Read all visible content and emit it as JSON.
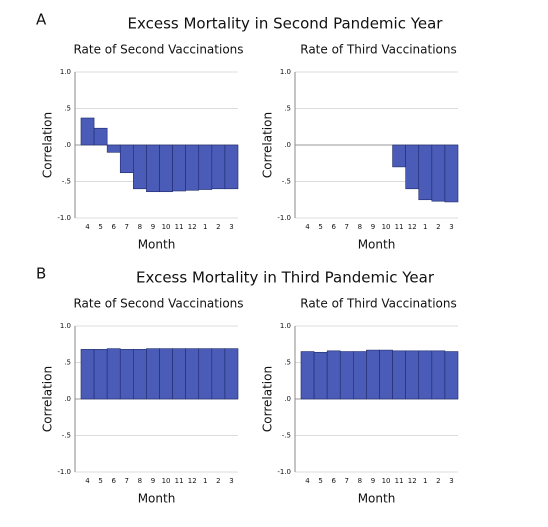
{
  "figure_sections": [
    {
      "label": "A",
      "title": "Excess Mortality in Second Pandemic Year"
    },
    {
      "label": "B",
      "title": "Excess Mortality in Third Pandemic Year"
    }
  ],
  "chart_data": [
    {
      "type": "bar",
      "title": "Rate of Second Vaccinations",
      "xlabel": "Month",
      "ylabel": "Correlation",
      "categories": [
        "4",
        "5",
        "6",
        "7",
        "8",
        "9",
        "10",
        "11",
        "12",
        "1",
        "2",
        "3"
      ],
      "values": [
        0.37,
        0.23,
        -0.1,
        -0.38,
        -0.6,
        -0.64,
        -0.64,
        -0.63,
        -0.62,
        -0.61,
        -0.6,
        -0.6
      ],
      "color": "#4a5bb8",
      "ylim": [
        -1,
        1
      ],
      "yticks": [
        {
          "value": -1,
          "label": "-1.0"
        },
        {
          "value": -0.5,
          "label": "-.5"
        },
        {
          "value": 0,
          "label": ".0"
        },
        {
          "value": 0.5,
          "label": ".5"
        },
        {
          "value": 1,
          "label": "1.0"
        }
      ],
      "grid": true
    },
    {
      "type": "bar",
      "title": "Rate of Third Vaccinations",
      "xlabel": "Month",
      "ylabel": "Correlation",
      "categories": [
        "4",
        "5",
        "6",
        "7",
        "8",
        "9",
        "10",
        "11",
        "12",
        "1",
        "2",
        "3"
      ],
      "values": [
        null,
        null,
        null,
        null,
        null,
        null,
        null,
        -0.3,
        -0.6,
        -0.75,
        -0.77,
        -0.78
      ],
      "color": "#4a5bb8",
      "ylim": [
        -1,
        1
      ],
      "yticks": [
        {
          "value": -1,
          "label": "-1.0"
        },
        {
          "value": -0.5,
          "label": "-.5"
        },
        {
          "value": 0,
          "label": ".0"
        },
        {
          "value": 0.5,
          "label": ".5"
        },
        {
          "value": 1,
          "label": "1.0"
        }
      ],
      "grid": true
    },
    {
      "type": "bar",
      "title": "Rate of Second Vaccinations",
      "xlabel": "Month",
      "ylabel": "Correlation",
      "categories": [
        "4",
        "5",
        "6",
        "7",
        "8",
        "9",
        "10",
        "11",
        "12",
        "1",
        "2",
        "3"
      ],
      "values": [
        0.68,
        0.68,
        0.69,
        0.68,
        0.68,
        0.69,
        0.69,
        0.69,
        0.69,
        0.69,
        0.69,
        0.69
      ],
      "color": "#4a5bb8",
      "ylim": [
        -1,
        1
      ],
      "yticks": [
        {
          "value": -1,
          "label": "-1.0"
        },
        {
          "value": -0.5,
          "label": "-.5"
        },
        {
          "value": 0,
          "label": ".0"
        },
        {
          "value": 0.5,
          "label": ".5"
        },
        {
          "value": 1,
          "label": "1.0"
        }
      ],
      "grid": true
    },
    {
      "type": "bar",
      "title": "Rate of Third Vaccinations",
      "xlabel": "Month",
      "ylabel": "Correlation",
      "categories": [
        "4",
        "5",
        "6",
        "7",
        "8",
        "9",
        "10",
        "11",
        "12",
        "1",
        "2",
        "3"
      ],
      "values": [
        0.65,
        0.64,
        0.66,
        0.65,
        0.65,
        0.67,
        0.67,
        0.66,
        0.66,
        0.66,
        0.66,
        0.65
      ],
      "color": "#4a5bb8",
      "ylim": [
        -1,
        1
      ],
      "yticks": [
        {
          "value": -1,
          "label": "-1.0"
        },
        {
          "value": -0.5,
          "label": "-.5"
        },
        {
          "value": 0,
          "label": ".0"
        },
        {
          "value": 0.5,
          "label": ".5"
        },
        {
          "value": 1,
          "label": "1.0"
        }
      ],
      "grid": true
    }
  ]
}
